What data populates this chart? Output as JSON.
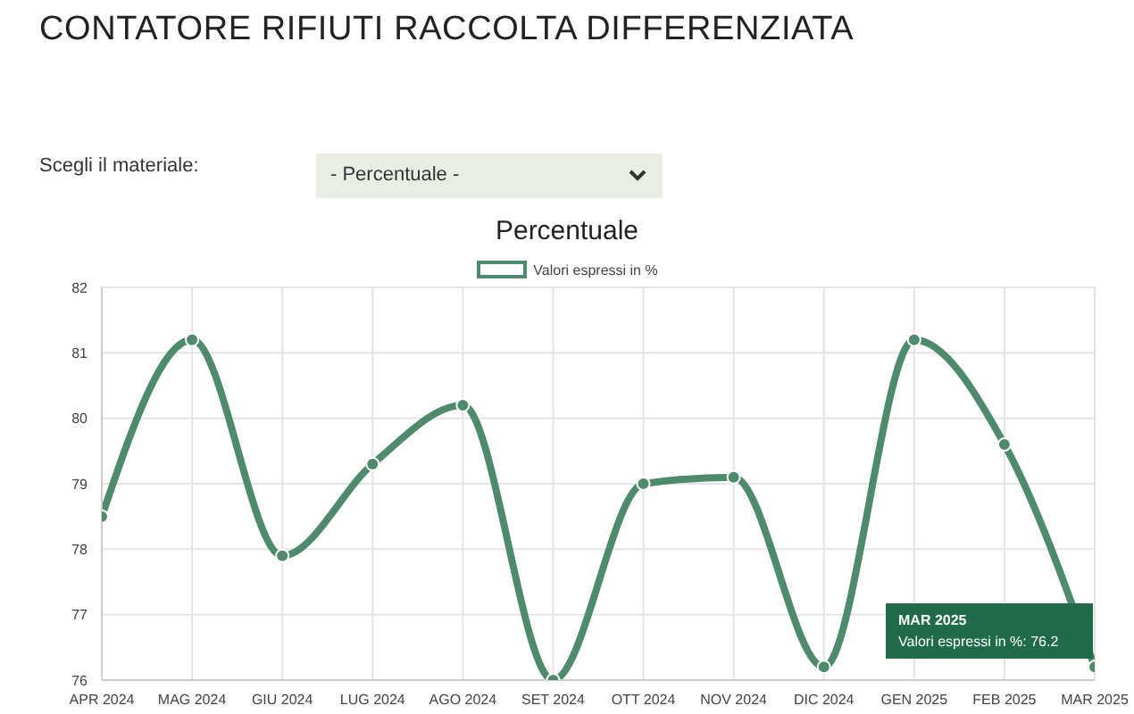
{
  "chart_data": {
    "type": "line",
    "title": "CONTATORE RIFIUTI RACCOLTA DIFFERENZIATA",
    "subtitle": "Percentuale",
    "categories": [
      "APR 2024",
      "MAG 2024",
      "GIU 2024",
      "LUG 2024",
      "AGO 2024",
      "SET 2024",
      "OTT 2024",
      "NOV 2024",
      "DIC 2024",
      "GEN 2025",
      "FEB 2025",
      "MAR 2025"
    ],
    "series": [
      {
        "name": "Valori espressi in %",
        "color": "#4e8a6c",
        "values": [
          78.5,
          81.2,
          77.9,
          79.3,
          80.2,
          76.0,
          79.0,
          79.1,
          76.2,
          81.2,
          79.6,
          76.2
        ]
      }
    ],
    "ylim": [
      76,
      82
    ],
    "yticks": [
      76,
      77,
      78,
      79,
      80,
      81,
      82
    ],
    "grid": true,
    "legend": "top",
    "marker": "circle",
    "line_style": "solid",
    "annotations": [
      "Scegli il materiale:",
      "- Percentuale -",
      "MAR 2025",
      "Valori espressi in %: 76.2"
    ]
  }
}
